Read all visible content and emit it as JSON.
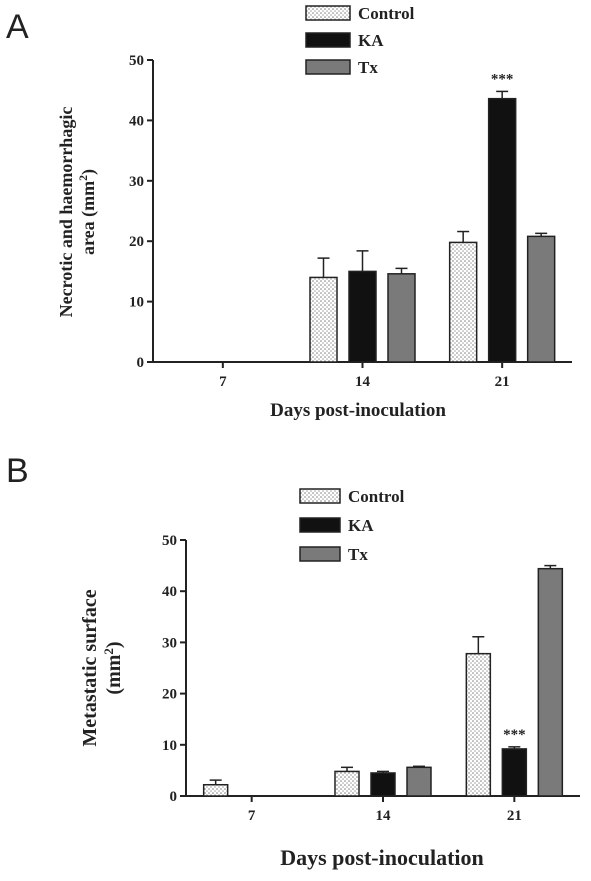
{
  "panel_a_label": "A",
  "panel_b_label": "B",
  "chart_data": [
    {
      "type": "bar",
      "categories": [
        "7",
        "14",
        "21"
      ],
      "ylabel_line1": "Necrotic and haemorrhagic",
      "ylabel_line2_prefix": "area (mm",
      "ylabel_line2_sup": "2",
      "ylabel_line2_suffix": ")",
      "xlabel": "Days post-inoculation",
      "ylim": [
        0,
        50
      ],
      "yticks": [
        "0",
        "10",
        "20",
        "30",
        "40",
        "50"
      ],
      "legend": [
        "Control",
        "KA",
        "Tx"
      ],
      "series": [
        {
          "name": "Control",
          "values": [
            null,
            14,
            19.8
          ],
          "errors": [
            null,
            3.2,
            1.8
          ],
          "color": "#ffffff",
          "pattern": "dots"
        },
        {
          "name": "KA",
          "values": [
            null,
            15,
            43.6
          ],
          "errors": [
            null,
            3.4,
            1.2
          ],
          "color": "#111111",
          "pattern": "solid"
        },
        {
          "name": "Tx",
          "values": [
            null,
            14.6,
            20.8
          ],
          "errors": [
            null,
            0.9,
            0.5
          ],
          "color": "#7a7a7a",
          "pattern": "solid"
        }
      ],
      "annotations": [
        {
          "category": "21",
          "series": "KA",
          "text": "***"
        }
      ]
    },
    {
      "type": "bar",
      "categories": [
        "7",
        "14",
        "21"
      ],
      "ylabel_line1": "Metastatic surface",
      "ylabel_line2_prefix": "(mm",
      "ylabel_line2_sup": "2",
      "ylabel_line2_suffix": ")",
      "xlabel": "Days post-inoculation",
      "ylim": [
        0,
        50
      ],
      "yticks": [
        "0",
        "10",
        "20",
        "30",
        "40",
        "50"
      ],
      "legend": [
        "Control",
        "KA",
        "Tx"
      ],
      "series": [
        {
          "name": "Control",
          "values": [
            2.2,
            4.8,
            27.8
          ],
          "errors": [
            0.9,
            0.8,
            3.3
          ],
          "color": "#ffffff",
          "pattern": "dots"
        },
        {
          "name": "KA",
          "values": [
            null,
            4.5,
            9.2
          ],
          "errors": [
            null,
            0.3,
            0.4
          ],
          "color": "#111111",
          "pattern": "solid"
        },
        {
          "name": "Tx",
          "values": [
            null,
            5.6,
            44.4
          ],
          "errors": [
            null,
            0.2,
            0.6
          ],
          "color": "#7a7a7a",
          "pattern": "solid"
        }
      ],
      "annotations": [
        {
          "category": "21",
          "series": "KA",
          "text": "***"
        }
      ]
    }
  ]
}
